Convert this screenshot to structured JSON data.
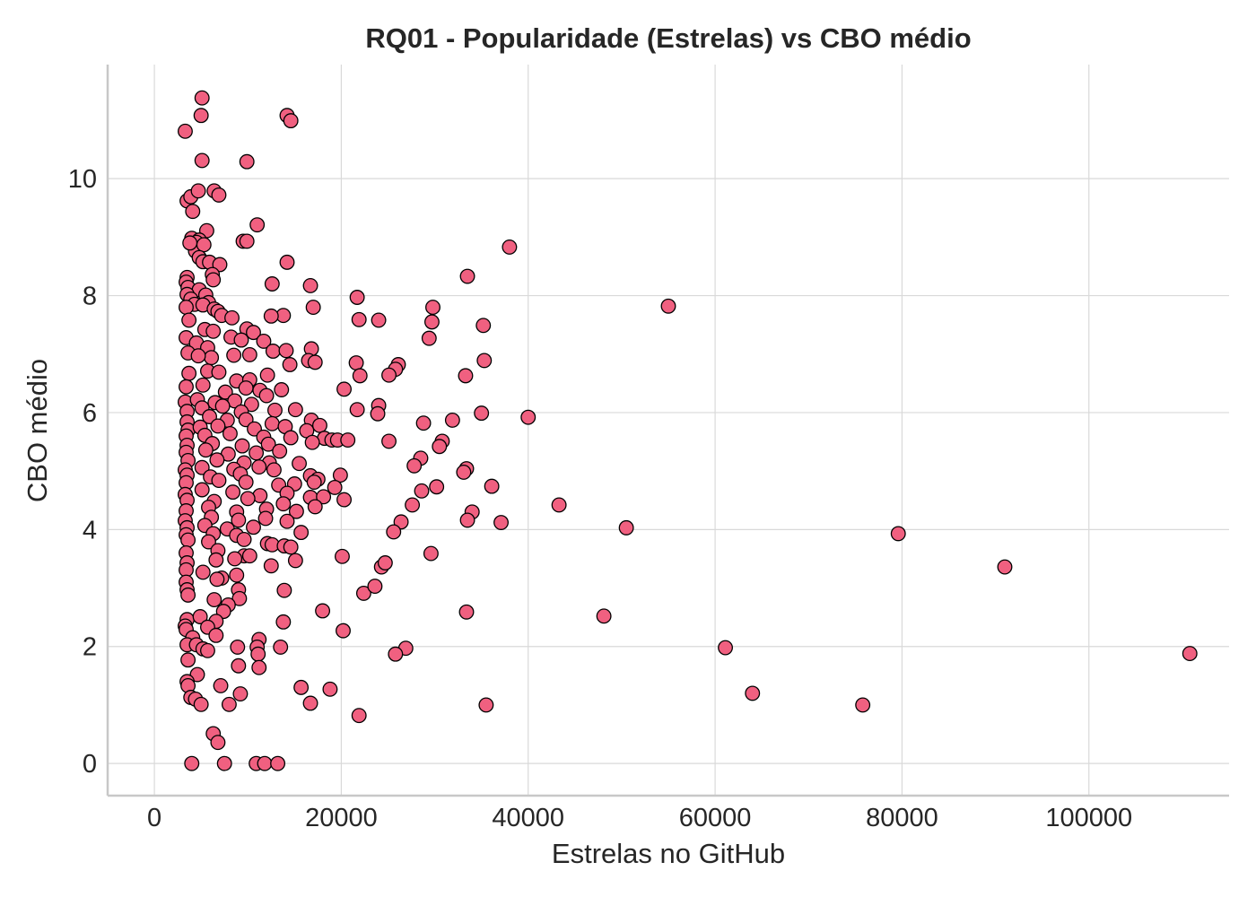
{
  "chart_data": {
    "type": "scatter",
    "title": "RQ01 - Popularidade (Estrelas) vs CBO médio",
    "xlabel": "Estrelas no GitHub",
    "ylabel": "CBO médio",
    "xlim": [
      -5000,
      115000
    ],
    "ylim": [
      -0.55,
      11.95
    ],
    "xticks": [
      0,
      20000,
      40000,
      60000,
      80000,
      100000
    ],
    "yticks": [
      0,
      2,
      4,
      6,
      8,
      10
    ],
    "grid": true,
    "marker_color": "#f06080",
    "edge_color": "#000000",
    "points": [
      [
        5100,
        11.38
      ],
      [
        5000,
        11.08
      ],
      [
        3300,
        10.81
      ],
      [
        14200,
        11.08
      ],
      [
        14600,
        10.99
      ],
      [
        5100,
        10.31
      ],
      [
        9900,
        10.29
      ],
      [
        3500,
        9.62
      ],
      [
        3900,
        9.69
      ],
      [
        4700,
        9.79
      ],
      [
        6400,
        9.79
      ],
      [
        6900,
        9.72
      ],
      [
        4100,
        9.44
      ],
      [
        5600,
        9.11
      ],
      [
        11000,
        9.21
      ],
      [
        9500,
        8.93
      ],
      [
        9900,
        8.93
      ],
      [
        4000,
        8.98
      ],
      [
        4800,
        8.95
      ],
      [
        4500,
        8.91
      ],
      [
        4400,
        8.76
      ],
      [
        5300,
        8.87
      ],
      [
        3800,
        8.9
      ],
      [
        4800,
        8.65
      ],
      [
        5200,
        8.58
      ],
      [
        5900,
        8.57
      ],
      [
        7000,
        8.53
      ],
      [
        14200,
        8.57
      ],
      [
        38000,
        8.83
      ],
      [
        33500,
        8.33
      ],
      [
        6200,
        8.36
      ],
      [
        6300,
        8.27
      ],
      [
        3500,
        8.31
      ],
      [
        3400,
        8.23
      ],
      [
        12600,
        8.2
      ],
      [
        16700,
        8.17
      ],
      [
        3600,
        8.14
      ],
      [
        4800,
        8.1
      ],
      [
        5500,
        8.01
      ],
      [
        3500,
        8.02
      ],
      [
        21700,
        7.97
      ],
      [
        3900,
        7.94
      ],
      [
        5800,
        7.88
      ],
      [
        4300,
        7.85
      ],
      [
        5200,
        7.84
      ],
      [
        6400,
        7.77
      ],
      [
        3400,
        7.8
      ],
      [
        55000,
        7.82
      ],
      [
        17000,
        7.8
      ],
      [
        29800,
        7.8
      ],
      [
        6800,
        7.73
      ],
      [
        7200,
        7.66
      ],
      [
        8300,
        7.62
      ],
      [
        3700,
        7.58
      ],
      [
        13800,
        7.66
      ],
      [
        12500,
        7.65
      ],
      [
        21900,
        7.59
      ],
      [
        24000,
        7.58
      ],
      [
        29700,
        7.55
      ],
      [
        35200,
        7.49
      ],
      [
        9900,
        7.43
      ],
      [
        10600,
        7.37
      ],
      [
        5400,
        7.42
      ],
      [
        6300,
        7.39
      ],
      [
        3400,
        7.28
      ],
      [
        8200,
        7.29
      ],
      [
        9300,
        7.24
      ],
      [
        4500,
        7.19
      ],
      [
        11700,
        7.22
      ],
      [
        29400,
        7.27
      ],
      [
        5700,
        7.11
      ],
      [
        12700,
        7.05
      ],
      [
        14100,
        7.06
      ],
      [
        16800,
        7.09
      ],
      [
        3600,
        7.02
      ],
      [
        8500,
        6.98
      ],
      [
        10200,
        6.99
      ],
      [
        6100,
        6.94
      ],
      [
        4700,
        6.97
      ],
      [
        16500,
        6.89
      ],
      [
        17200,
        6.86
      ],
      [
        21600,
        6.85
      ],
      [
        35300,
        6.89
      ],
      [
        14500,
        6.82
      ],
      [
        26100,
        6.82
      ],
      [
        25800,
        6.74
      ],
      [
        33300,
        6.63
      ],
      [
        22000,
        6.63
      ],
      [
        25100,
        6.64
      ],
      [
        3700,
        6.67
      ],
      [
        5700,
        6.71
      ],
      [
        6900,
        6.69
      ],
      [
        8800,
        6.54
      ],
      [
        10200,
        6.56
      ],
      [
        12100,
        6.64
      ],
      [
        3400,
        6.44
      ],
      [
        5200,
        6.47
      ],
      [
        7600,
        6.35
      ],
      [
        9800,
        6.42
      ],
      [
        11300,
        6.38
      ],
      [
        13600,
        6.39
      ],
      [
        20300,
        6.4
      ],
      [
        3300,
        6.18
      ],
      [
        4600,
        6.22
      ],
      [
        6500,
        6.17
      ],
      [
        8600,
        6.2
      ],
      [
        10400,
        6.14
      ],
      [
        12000,
        6.29
      ],
      [
        24000,
        6.12
      ],
      [
        3500,
        6.02
      ],
      [
        5100,
        6.08
      ],
      [
        7300,
        6.11
      ],
      [
        9300,
        6.01
      ],
      [
        12900,
        6.04
      ],
      [
        15100,
        6.05
      ],
      [
        21700,
        6.05
      ],
      [
        23900,
        5.98
      ],
      [
        35000,
        5.99
      ],
      [
        40000,
        5.92
      ],
      [
        3500,
        5.84
      ],
      [
        5900,
        5.93
      ],
      [
        7800,
        5.87
      ],
      [
        9800,
        5.88
      ],
      [
        12600,
        5.81
      ],
      [
        16800,
        5.87
      ],
      [
        28800,
        5.82
      ],
      [
        31900,
        5.87
      ],
      [
        3600,
        5.7
      ],
      [
        4900,
        5.75
      ],
      [
        6800,
        5.77
      ],
      [
        10700,
        5.72
      ],
      [
        14000,
        5.76
      ],
      [
        16300,
        5.69
      ],
      [
        17700,
        5.78
      ],
      [
        3400,
        5.6
      ],
      [
        5400,
        5.61
      ],
      [
        8100,
        5.64
      ],
      [
        11700,
        5.58
      ],
      [
        14600,
        5.57
      ],
      [
        18200,
        5.56
      ],
      [
        19000,
        5.53
      ],
      [
        19600,
        5.53
      ],
      [
        20700,
        5.53
      ],
      [
        25100,
        5.51
      ],
      [
        30800,
        5.51
      ],
      [
        3500,
        5.44
      ],
      [
        6200,
        5.47
      ],
      [
        9400,
        5.43
      ],
      [
        12200,
        5.46
      ],
      [
        16900,
        5.49
      ],
      [
        30500,
        5.42
      ],
      [
        3400,
        5.32
      ],
      [
        5500,
        5.36
      ],
      [
        7900,
        5.29
      ],
      [
        10900,
        5.31
      ],
      [
        13400,
        5.34
      ],
      [
        28500,
        5.22
      ],
      [
        3600,
        5.18
      ],
      [
        6700,
        5.19
      ],
      [
        9600,
        5.14
      ],
      [
        12300,
        5.14
      ],
      [
        15500,
        5.13
      ],
      [
        27800,
        5.09
      ],
      [
        3300,
        5.02
      ],
      [
        5100,
        5.06
      ],
      [
        8500,
        5.03
      ],
      [
        11200,
        5.07
      ],
      [
        12800,
        5.02
      ],
      [
        33400,
        5.04
      ],
      [
        33100,
        4.98
      ],
      [
        3500,
        4.93
      ],
      [
        6000,
        4.9
      ],
      [
        9200,
        4.95
      ],
      [
        16700,
        4.92
      ],
      [
        17500,
        4.86
      ],
      [
        19900,
        4.93
      ],
      [
        3400,
        4.8
      ],
      [
        6900,
        4.84
      ],
      [
        9800,
        4.81
      ],
      [
        13300,
        4.76
      ],
      [
        15000,
        4.78
      ],
      [
        17100,
        4.81
      ],
      [
        36100,
        4.74
      ],
      [
        30200,
        4.73
      ],
      [
        3300,
        4.6
      ],
      [
        5100,
        4.68
      ],
      [
        8400,
        4.64
      ],
      [
        11300,
        4.58
      ],
      [
        14200,
        4.62
      ],
      [
        16700,
        4.55
      ],
      [
        18100,
        4.56
      ],
      [
        19300,
        4.72
      ],
      [
        20300,
        4.51
      ],
      [
        28600,
        4.66
      ],
      [
        3500,
        4.5
      ],
      [
        6400,
        4.48
      ],
      [
        10000,
        4.53
      ],
      [
        13800,
        4.44
      ],
      [
        27600,
        4.42
      ],
      [
        43300,
        4.42
      ],
      [
        3400,
        4.32
      ],
      [
        5800,
        4.38
      ],
      [
        8800,
        4.3
      ],
      [
        12000,
        4.35
      ],
      [
        15200,
        4.31
      ],
      [
        17200,
        4.39
      ],
      [
        34000,
        4.3
      ],
      [
        3300,
        4.15
      ],
      [
        6100,
        4.21
      ],
      [
        9000,
        4.16
      ],
      [
        11900,
        4.19
      ],
      [
        14200,
        4.14
      ],
      [
        26400,
        4.13
      ],
      [
        33500,
        4.16
      ],
      [
        37100,
        4.12
      ],
      [
        3500,
        4.03
      ],
      [
        5400,
        4.07
      ],
      [
        7800,
        4.01
      ],
      [
        10600,
        4.04
      ],
      [
        50500,
        4.03
      ],
      [
        3400,
        3.91
      ],
      [
        6300,
        3.93
      ],
      [
        8800,
        3.9
      ],
      [
        15700,
        3.95
      ],
      [
        25600,
        3.96
      ],
      [
        79600,
        3.93
      ],
      [
        3600,
        3.82
      ],
      [
        5800,
        3.79
      ],
      [
        9600,
        3.83
      ],
      [
        12100,
        3.76
      ],
      [
        12600,
        3.74
      ],
      [
        13900,
        3.72
      ],
      [
        14600,
        3.7
      ],
      [
        3400,
        3.6
      ],
      [
        6800,
        3.64
      ],
      [
        9600,
        3.55
      ],
      [
        10200,
        3.55
      ],
      [
        20100,
        3.54
      ],
      [
        29600,
        3.59
      ],
      [
        3500,
        3.43
      ],
      [
        6600,
        3.48
      ],
      [
        8600,
        3.5
      ],
      [
        12500,
        3.38
      ],
      [
        15100,
        3.47
      ],
      [
        24300,
        3.36
      ],
      [
        24700,
        3.43
      ],
      [
        91000,
        3.36
      ],
      [
        3400,
        3.31
      ],
      [
        5200,
        3.27
      ],
      [
        7200,
        3.17
      ],
      [
        8800,
        3.22
      ],
      [
        3400,
        3.1
      ],
      [
        3500,
        2.97
      ],
      [
        6700,
        3.15
      ],
      [
        9000,
        2.97
      ],
      [
        13900,
        2.96
      ],
      [
        22400,
        2.91
      ],
      [
        23600,
        3.03
      ],
      [
        3600,
        2.88
      ],
      [
        6400,
        2.8
      ],
      [
        9100,
        2.82
      ],
      [
        7900,
        2.71
      ],
      [
        7400,
        2.6
      ],
      [
        18000,
        2.61
      ],
      [
        33400,
        2.59
      ],
      [
        48100,
        2.52
      ],
      [
        3500,
        2.46
      ],
      [
        4900,
        2.51
      ],
      [
        6600,
        2.43
      ],
      [
        13800,
        2.42
      ],
      [
        3300,
        2.35
      ],
      [
        3400,
        2.29
      ],
      [
        5700,
        2.33
      ],
      [
        6600,
        2.19
      ],
      [
        4100,
        2.15
      ],
      [
        11200,
        2.12
      ],
      [
        20200,
        2.27
      ],
      [
        3500,
        2.03
      ],
      [
        4500,
        2.03
      ],
      [
        5200,
        1.96
      ],
      [
        5700,
        1.93
      ],
      [
        8900,
        1.99
      ],
      [
        11000,
        1.99
      ],
      [
        13500,
        1.99
      ],
      [
        26900,
        1.97
      ],
      [
        11100,
        1.87
      ],
      [
        25800,
        1.87
      ],
      [
        61100,
        1.98
      ],
      [
        110800,
        1.88
      ],
      [
        3600,
        1.77
      ],
      [
        9000,
        1.67
      ],
      [
        11200,
        1.64
      ],
      [
        4600,
        1.52
      ],
      [
        3500,
        1.4
      ],
      [
        3600,
        1.33
      ],
      [
        7100,
        1.33
      ],
      [
        15700,
        1.3
      ],
      [
        18800,
        1.27
      ],
      [
        9200,
        1.19
      ],
      [
        64000,
        1.2
      ],
      [
        3900,
        1.13
      ],
      [
        4400,
        1.1
      ],
      [
        5000,
        1.01
      ],
      [
        8000,
        1.01
      ],
      [
        16700,
        1.03
      ],
      [
        35500,
        1.0
      ],
      [
        75800,
        1.0
      ],
      [
        21900,
        0.82
      ],
      [
        6300,
        0.51
      ],
      [
        6800,
        0.36
      ],
      [
        4000,
        0.0
      ],
      [
        7500,
        0.0
      ],
      [
        10900,
        0.0
      ],
      [
        11800,
        0.0
      ],
      [
        13200,
        0.0
      ]
    ]
  }
}
